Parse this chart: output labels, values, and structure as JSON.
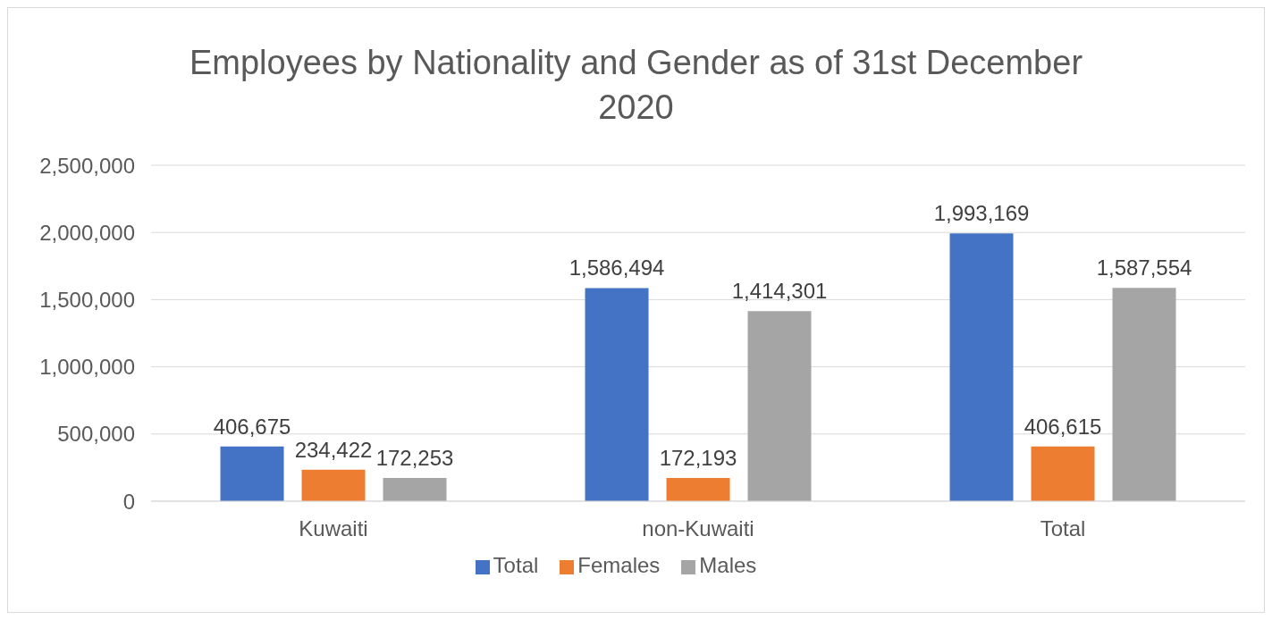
{
  "chart_data": {
    "type": "bar",
    "title": "Employees by Nationality and Gender as of 31st December 2020",
    "categories": [
      "Kuwaiti",
      "non-Kuwaiti",
      "Total"
    ],
    "series": [
      {
        "name": "Total",
        "color": "#4472c4",
        "values": [
          406675,
          1586494,
          1993169
        ],
        "value_labels": [
          "406,675",
          "1,586,494",
          "1,993,169"
        ]
      },
      {
        "name": "Females",
        "color": "#ed7d31",
        "values": [
          234422,
          172193,
          406615
        ],
        "value_labels": [
          "234,422",
          "172,193",
          "406,615"
        ]
      },
      {
        "name": "Males",
        "color": "#a5a5a5",
        "values": [
          172253,
          1414301,
          1587554
        ],
        "value_labels": [
          "172,253",
          "1,414,301",
          "1,587,554"
        ]
      }
    ],
    "ylim": [
      0,
      2500000
    ],
    "yticks": [
      0,
      {
        "value": 500000,
        "label": "500,000"
      },
      {
        "value": 1000000,
        "label": "1,000,000"
      },
      {
        "value": 1500000,
        "label": "1,500,000"
      },
      {
        "value": 2000000,
        "label": "2,000,000"
      },
      {
        "value": 2500000,
        "label": "2,500,000"
      }
    ],
    "grid": "y",
    "legend": "bottom"
  }
}
